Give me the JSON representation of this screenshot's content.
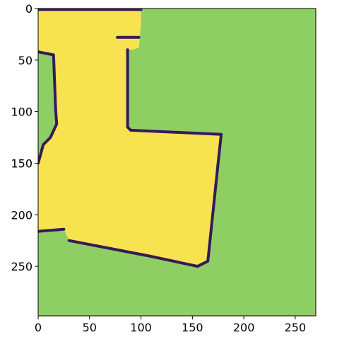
{
  "chart_data": {
    "type": "heatmap",
    "title": "",
    "xlabel": "",
    "ylabel": "",
    "image_shape": [
      298,
      270
    ],
    "xlim": [
      0,
      270
    ],
    "ylim": [
      298,
      0
    ],
    "y_inverted": true,
    "grid": false,
    "x_ticks": [
      0,
      50,
      100,
      150,
      200,
      250
    ],
    "y_ticks": [
      0,
      50,
      100,
      150,
      200,
      250
    ],
    "x_tick_labels": [
      "0",
      "50",
      "100",
      "150",
      "200",
      "250"
    ],
    "y_tick_labels": [
      "0",
      "50",
      "100",
      "150",
      "200",
      "250"
    ],
    "colormap": "viridis",
    "classes": [
      {
        "value": 0,
        "role": "wall",
        "color": "#36195b"
      },
      {
        "value": 1,
        "role": "unknown",
        "color": "#8fce62"
      },
      {
        "value": 2,
        "role": "free",
        "color": "#f7e34f"
      }
    ],
    "regions": {
      "free_polygon": [
        [
          0,
          0
        ],
        [
          100,
          0
        ],
        [
          100,
          15
        ],
        [
          98,
          38
        ],
        [
          92,
          40
        ],
        [
          88,
          40
        ],
        [
          87,
          115
        ],
        [
          90,
          118
        ],
        [
          178,
          122
        ],
        [
          175,
          150
        ],
        [
          165,
          245
        ],
        [
          155,
          250
        ],
        [
          108,
          240
        ],
        [
          30,
          225
        ],
        [
          25,
          214
        ],
        [
          0,
          216
        ],
        [
          0,
          150
        ],
        [
          5,
          132
        ],
        [
          12,
          125
        ],
        [
          18,
          112
        ],
        [
          17,
          97
        ],
        [
          16,
          72
        ],
        [
          15,
          45
        ],
        [
          0,
          42
        ]
      ],
      "wall_segments": [
        [
          [
            0,
            1
          ],
          [
            100,
            1
          ]
        ],
        [
          [
            87,
            40
          ],
          [
            87,
            115
          ],
          [
            90,
            118
          ],
          [
            178,
            122
          ]
        ],
        [
          [
            178,
            122
          ],
          [
            175,
            150
          ],
          [
            165,
            245
          ],
          [
            155,
            250
          ],
          [
            108,
            240
          ],
          [
            30,
            225
          ]
        ],
        [
          [
            25,
            214
          ],
          [
            0,
            216
          ]
        ],
        [
          [
            0,
            42
          ],
          [
            15,
            45
          ],
          [
            16,
            72
          ],
          [
            17,
            97
          ],
          [
            18,
            112
          ],
          [
            12,
            125
          ],
          [
            5,
            132
          ],
          [
            0,
            150
          ]
        ],
        [
          [
            77,
            28
          ],
          [
            98,
            28
          ]
        ]
      ]
    }
  }
}
